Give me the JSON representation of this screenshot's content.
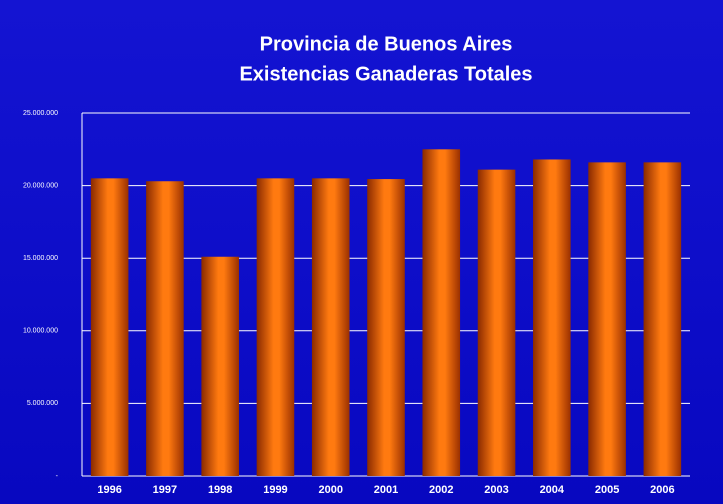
{
  "chart_data": {
    "type": "bar",
    "title": "Provincia de Buenos Aires",
    "subtitle": "Existencias Ganaderas Totales",
    "categories": [
      "1996",
      "1997",
      "1998",
      "1999",
      "2000",
      "2001",
      "2002",
      "2003",
      "2004",
      "2005",
      "2006"
    ],
    "values": [
      20500000,
      20300000,
      15100000,
      20500000,
      20500000,
      20450000,
      22500000,
      21100000,
      21800000,
      21600000,
      21600000
    ],
    "color": "#ff6a00",
    "ylim": [
      0,
      25000000
    ],
    "yticks": [
      {
        "value": 0,
        "label": "-"
      },
      {
        "value": 5000000,
        "label": "5.000.000"
      },
      {
        "value": 10000000,
        "label": "10.000.000"
      },
      {
        "value": 15000000,
        "label": "15.000.000"
      },
      {
        "value": 20000000,
        "label": "20.000.000"
      },
      {
        "value": 25000000,
        "label": "25.000.000"
      }
    ],
    "grid": true
  }
}
